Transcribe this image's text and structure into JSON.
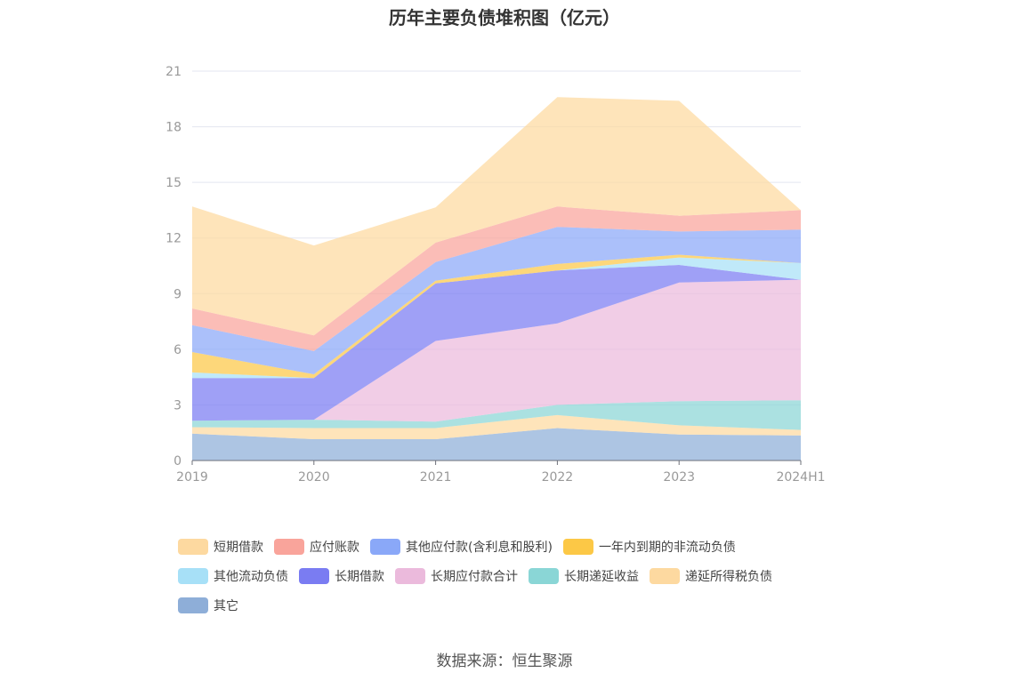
{
  "title": "历年主要负债堆积图（亿元）",
  "source": "数据来源：恒生聚源",
  "chart_data": {
    "type": "area",
    "stacked": true,
    "categories": [
      "2019",
      "2020",
      "2021",
      "2022",
      "2023",
      "2024H1"
    ],
    "ylim": [
      0,
      21
    ],
    "yticks": [
      0,
      3,
      6,
      9,
      12,
      15,
      18,
      21
    ],
    "grid": true,
    "legend_position": "bottom",
    "series": [
      {
        "name": "其它",
        "color": "#8eaed8",
        "values": [
          1.45,
          1.15,
          1.15,
          1.75,
          1.4,
          1.35
        ]
      },
      {
        "name": "递延所得税负债",
        "color": "#fdd9a0",
        "values": [
          0.35,
          0.6,
          0.6,
          0.7,
          0.5,
          0.3
        ]
      },
      {
        "name": "长期递延收益",
        "color": "#8ad6d6",
        "values": [
          0.35,
          0.45,
          0.35,
          0.55,
          1.3,
          1.6
        ]
      },
      {
        "name": "长期应付款合计",
        "color": "#ebbadc",
        "values": [
          0,
          0,
          4.35,
          4.4,
          6.4,
          6.5
        ]
      },
      {
        "name": "长期借款",
        "color": "#7a7cf2",
        "values": [
          2.3,
          2.25,
          3.1,
          2.85,
          0.95,
          0
        ]
      },
      {
        "name": "其他流动负债",
        "color": "#a7e0f7",
        "values": [
          0.3,
          0,
          0,
          0,
          0.4,
          0.9
        ]
      },
      {
        "name": "一年内到期的非流动负债",
        "color": "#fcc846",
        "values": [
          1.1,
          0.2,
          0.15,
          0.35,
          0.15,
          0
        ]
      },
      {
        "name": "其他应付款(含利息和股利)",
        "color": "#8aa8f8",
        "values": [
          1.45,
          1.25,
          1.0,
          2.0,
          1.25,
          1.8
        ]
      },
      {
        "name": "应付账款",
        "color": "#f9a49b",
        "values": [
          0.9,
          0.85,
          1.05,
          1.1,
          0.85,
          1.05
        ]
      },
      {
        "name": "短期借款",
        "color": "#fdd9a0",
        "values": [
          5.5,
          4.85,
          1.9,
          5.9,
          6.2,
          0
        ]
      }
    ]
  },
  "legend_rows": [
    [
      {
        "label": "短期借款",
        "color": "#fdd9a0"
      },
      {
        "label": "应付账款",
        "color": "#f9a49b"
      },
      {
        "label": "其他应付款(含利息和股利)",
        "color": "#8aa8f8"
      },
      {
        "label": "一年内到期的非流动负债",
        "color": "#fcc846"
      }
    ],
    [
      {
        "label": "其他流动负债",
        "color": "#a7e0f7"
      },
      {
        "label": "长期借款",
        "color": "#7a7cf2"
      },
      {
        "label": "长期应付款合计",
        "color": "#ebbadc"
      },
      {
        "label": "长期递延收益",
        "color": "#8ad6d6"
      },
      {
        "label": "递延所得税负债",
        "color": "#fdd9a0"
      }
    ],
    [
      {
        "label": "其它",
        "color": "#8eaed8"
      }
    ]
  ]
}
